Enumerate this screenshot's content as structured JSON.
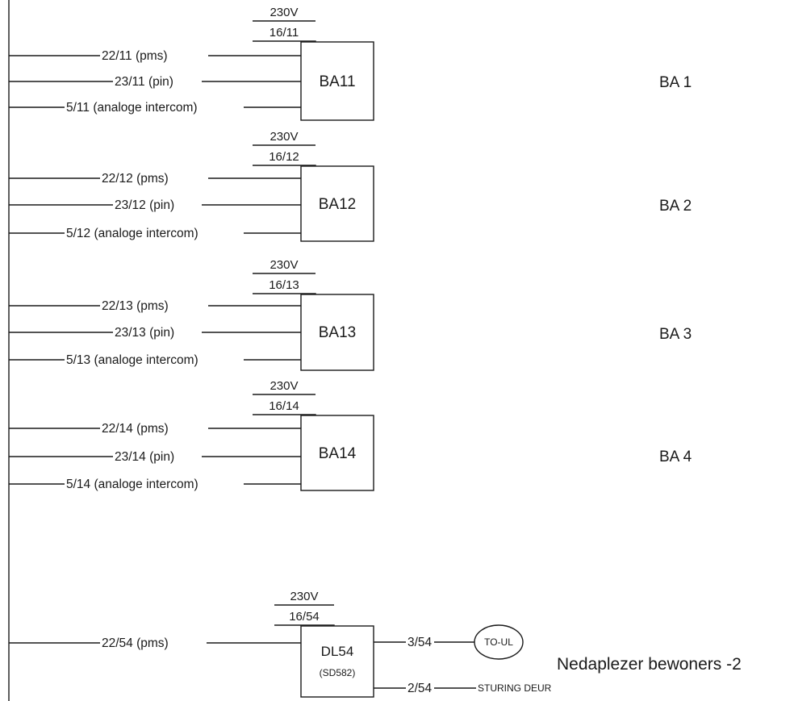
{
  "ba_units": [
    {
      "power": "230V",
      "circuit": "16/11",
      "box": "BA11",
      "section": "BA 1",
      "lines": [
        "22/11 (pms)",
        "23/11 (pin)",
        "5/11 (analoge intercom)"
      ]
    },
    {
      "power": "230V",
      "circuit": "16/12",
      "box": "BA12",
      "section": "BA 2",
      "lines": [
        "22/12 (pms)",
        "23/12 (pin)",
        "5/12 (analoge intercom)"
      ]
    },
    {
      "power": "230V",
      "circuit": "16/13",
      "box": "BA13",
      "section": "BA 3",
      "lines": [
        "22/13 (pms)",
        "23/13 (pin)",
        "5/13 (analoge intercom)"
      ]
    },
    {
      "power": "230V",
      "circuit": "16/14",
      "box": "BA14",
      "section": "BA 4",
      "lines": [
        "22/14 (pms)",
        "23/14 (pin)",
        "5/14 (analoge intercom)"
      ]
    }
  ],
  "dl_unit": {
    "power": "230V",
    "circuit": "16/54",
    "box": "DL54",
    "box_sub": "(SD582)",
    "input_line": "22/54 (pms)",
    "output_top": "3/54",
    "output_top_target": "TO-UL",
    "output_bottom": "2/54",
    "output_bottom_target": "STURING DEUR",
    "note": "Nedaplezer bewoners -2"
  }
}
